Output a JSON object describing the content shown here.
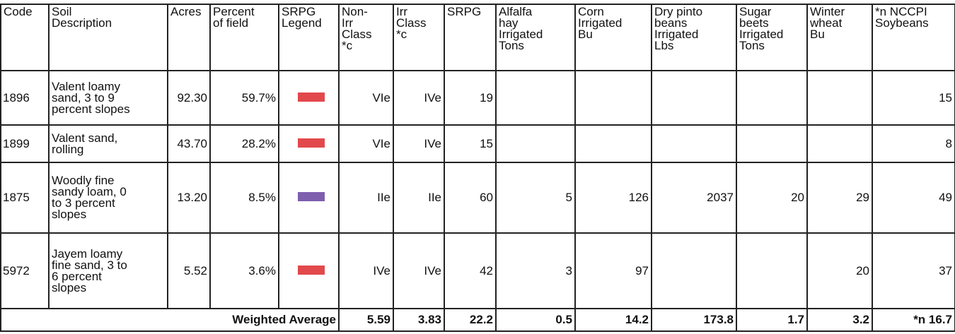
{
  "table": {
    "columns": [
      [
        "Code"
      ],
      [
        "Soil",
        "Description"
      ],
      [
        "Acres"
      ],
      [
        "Percent",
        "of field"
      ],
      [
        "SRPG",
        "Legend"
      ],
      [
        "Non-",
        "Irr",
        "Class",
        "*c"
      ],
      [
        "Irr",
        "Class",
        "*c"
      ],
      [
        "SRPG"
      ],
      [
        "Alfalfa",
        "hay",
        "Irrigated",
        "Tons"
      ],
      [
        "Corn",
        "Irrigated",
        "Bu"
      ],
      [
        "Dry pinto",
        "beans",
        "Irrigated",
        "Lbs"
      ],
      [
        "Sugar",
        "beets",
        "Irrigated",
        "Tons"
      ],
      [
        "Winter",
        "wheat",
        "Bu"
      ],
      [
        "*n NCCPI",
        "Soybeans"
      ]
    ],
    "rows": [
      {
        "code": "1896",
        "description": [
          "Valent loamy",
          "sand, 3 to 9",
          "percent slopes"
        ],
        "acres": "92.30",
        "percent": "59.7%",
        "legend_color": "#e2494c",
        "values": [
          "VIe",
          "IVe",
          "19",
          null,
          null,
          null,
          null,
          null,
          "15"
        ]
      },
      {
        "code": "1899",
        "description": [
          "Valent sand,",
          "rolling"
        ],
        "acres": "43.70",
        "percent": "28.2%",
        "legend_color": "#e2494c",
        "values": [
          "VIe",
          "IVe",
          "15",
          null,
          null,
          null,
          null,
          null,
          "8"
        ]
      },
      {
        "code": "1875",
        "description": [
          "Woodly fine",
          "sandy loam, 0",
          "to 3 percent",
          "slopes"
        ],
        "acres": "13.20",
        "percent": "8.5%",
        "legend_color": "#7d5fae",
        "values": [
          "IIe",
          "IIe",
          "60",
          "5",
          "126",
          "2037",
          "20",
          "29",
          "49"
        ]
      },
      {
        "code": "5972",
        "description": [
          "Jayem loamy",
          "fine sand, 3 to",
          "6 percent",
          "slopes"
        ],
        "acres": "5.52",
        "percent": "3.6%",
        "legend_color": "#e2494c",
        "values": [
          "IVe",
          "IVe",
          "42",
          "3",
          "97",
          null,
          null,
          "20",
          "37"
        ]
      }
    ],
    "footer": {
      "label": "Weighted Average",
      "values": [
        "5.59",
        "3.83",
        "22.2",
        "0.5",
        "14.2",
        "173.8",
        "1.7",
        "3.2",
        "*n 16.7"
      ]
    }
  }
}
